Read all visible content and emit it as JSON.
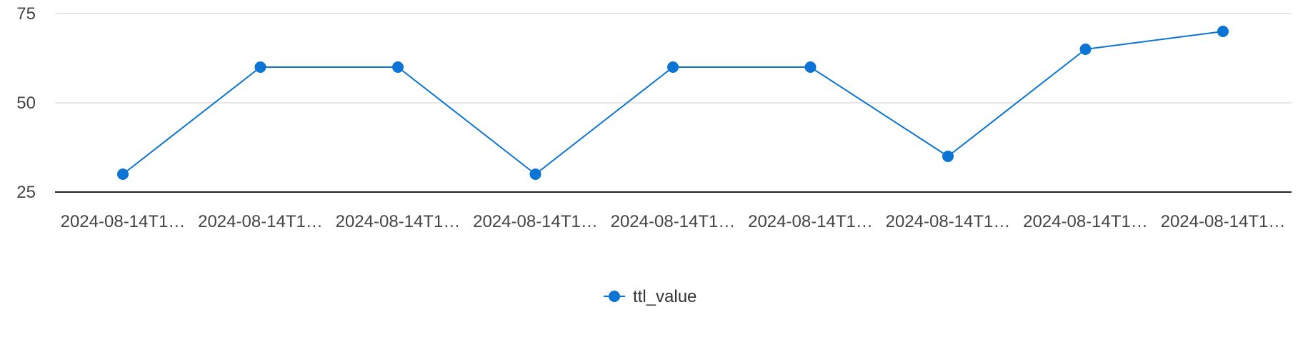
{
  "chart_data": {
    "type": "line",
    "title": "",
    "xlabel": "",
    "ylabel": "",
    "x": [
      "2024-08-14T1…",
      "2024-08-14T1…",
      "2024-08-14T1…",
      "2024-08-14T1…",
      "2024-08-14T1…",
      "2024-08-14T1…",
      "2024-08-14T1…",
      "2024-08-14T1…",
      "2024-08-14T1…"
    ],
    "series": [
      {
        "name": "ttl_value",
        "color": "#0b74d4",
        "values": [
          30,
          60,
          60,
          30,
          60,
          60,
          35,
          65,
          70
        ]
      }
    ],
    "ylim": [
      25,
      75
    ],
    "yticks": [
      "25",
      "50",
      "75"
    ],
    "grid": true,
    "legend": "bottom-center",
    "marker": "circle"
  }
}
